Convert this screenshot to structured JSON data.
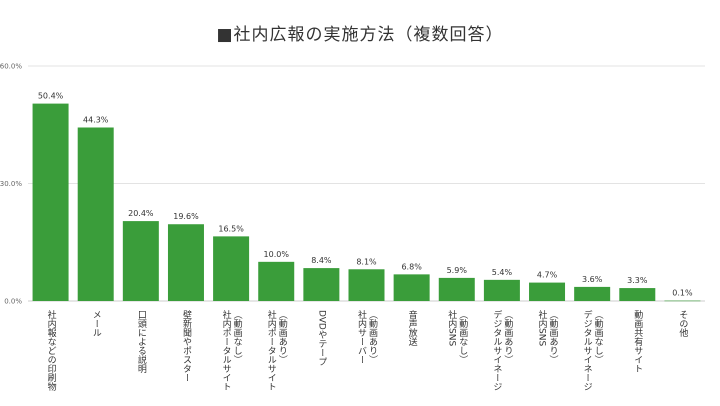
{
  "chart_data": {
    "type": "bar",
    "title": "■社内広報の実施方法（複数回答）",
    "xlabel": "",
    "ylabel": "",
    "ylim": [
      0,
      60
    ],
    "yticks": [
      {
        "value": 0,
        "label": "0.0%"
      },
      {
        "value": 30,
        "label": "30.0%"
      },
      {
        "value": 60,
        "label": "60.0%"
      }
    ],
    "grid": true,
    "legend": "none",
    "bar_color": "#3a9d3a",
    "categories": [
      [
        "社内報などの印刷物"
      ],
      [
        "メール"
      ],
      [
        "口頭による説明"
      ],
      [
        "壁新聞やポスター"
      ],
      [
        "社内ポータルサイト",
        "（動画なし）"
      ],
      [
        "社内ポータルサイト",
        "（動画あり）"
      ],
      [
        "DVDやテープ"
      ],
      [
        "社内サーバー",
        "（動画あり）"
      ],
      [
        "音声放送"
      ],
      [
        "社内SNS",
        "（動画なし）"
      ],
      [
        "デジタルサイネージ",
        "（動画あり）"
      ],
      [
        "社内SNS",
        "（動画あり）"
      ],
      [
        "デジタルサイネージ",
        "（動画なし）"
      ],
      [
        "動画共有サイト"
      ],
      [
        "その他"
      ]
    ],
    "values": [
      50.4,
      44.3,
      20.4,
      19.6,
      16.5,
      10.0,
      8.4,
      8.1,
      6.8,
      5.9,
      5.4,
      4.7,
      3.6,
      3.3,
      0.1
    ],
    "value_labels": [
      "50.4%",
      "44.3%",
      "20.4%",
      "19.6%",
      "16.5%",
      "10.0%",
      "8.4%",
      "8.1%",
      "6.8%",
      "5.9%",
      "5.4%",
      "4.7%",
      "3.6%",
      "3.3%",
      "0.1%"
    ]
  }
}
